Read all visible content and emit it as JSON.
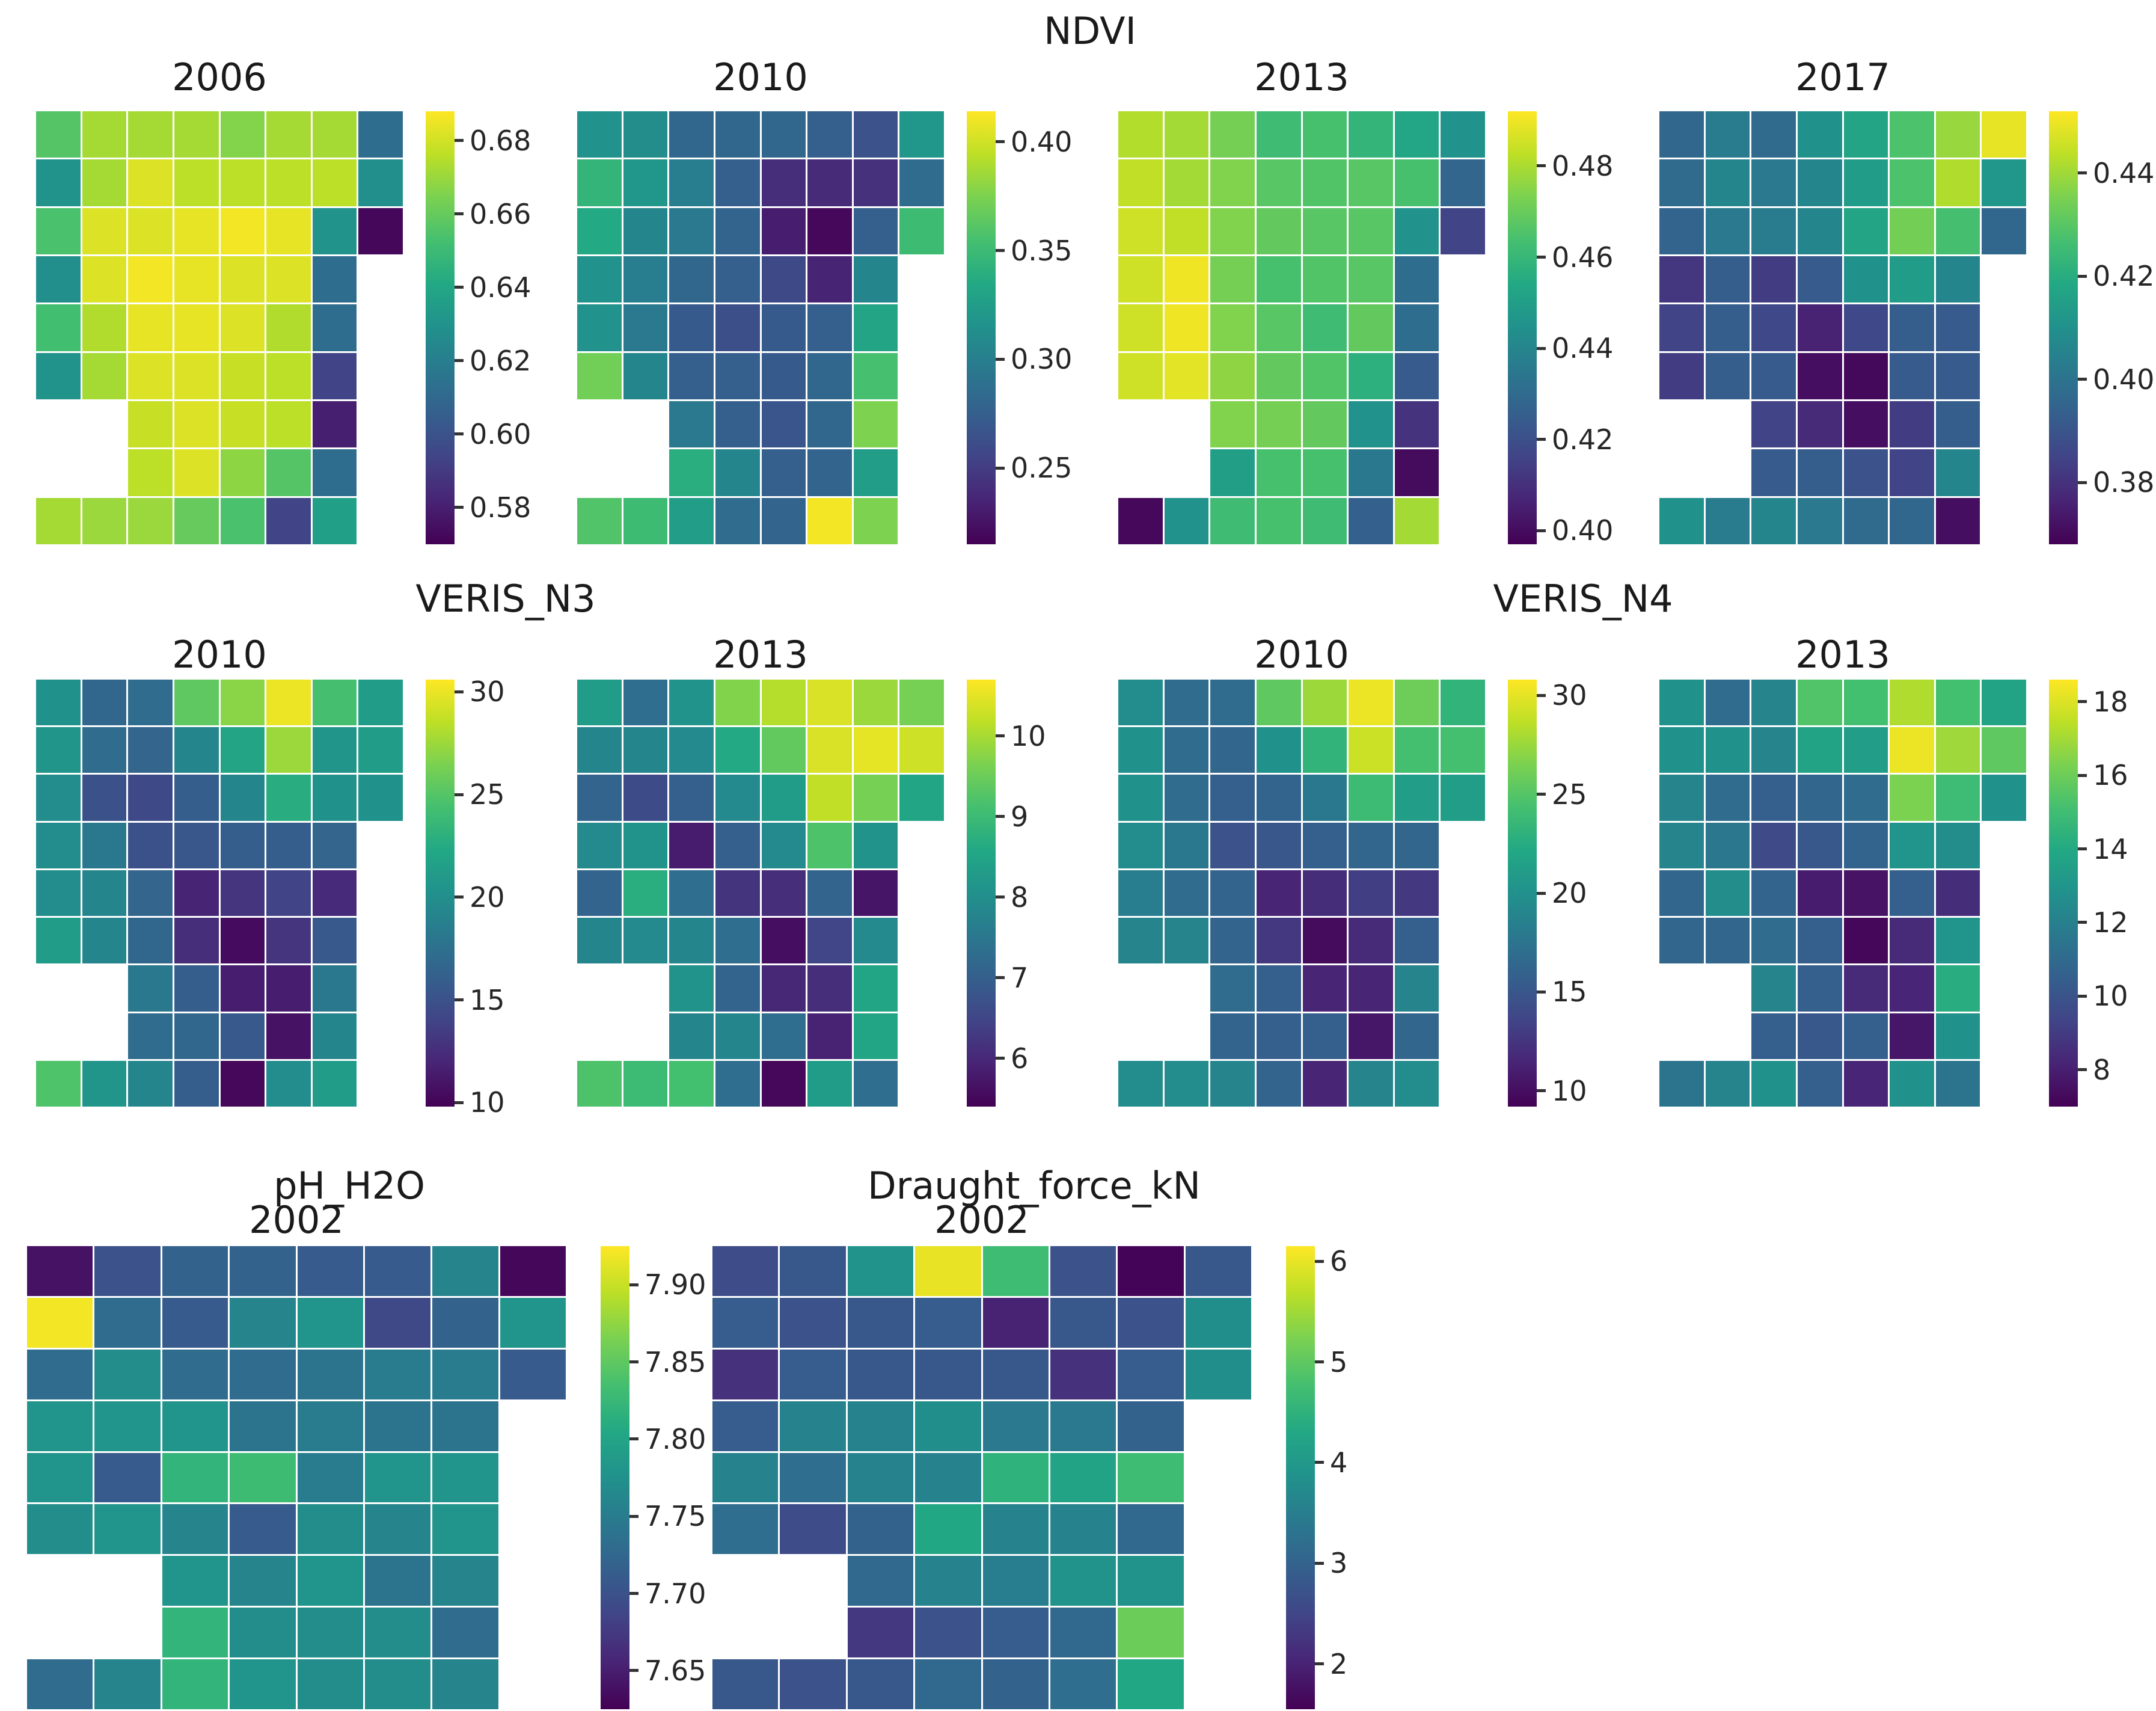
{
  "figure": {
    "background": "#ffffff",
    "text_color": "#1a1a1a"
  },
  "groups": {
    "ndvi": {
      "label": "NDVI"
    },
    "veris_n3": {
      "label": "VERIS_N3"
    },
    "veris_n4": {
      "label": "VERIS_N4"
    },
    "ph": {
      "label": "pH_H2O"
    },
    "draught": {
      "label": "Draught_force_kN"
    }
  },
  "colormap": {
    "name": "viridis",
    "stops": [
      "#440154",
      "#482475",
      "#414487",
      "#355f8d",
      "#2a788e",
      "#21918c",
      "#22a884",
      "#44bf70",
      "#7ad151",
      "#bddf26",
      "#fde725"
    ]
  },
  "chart_data": [
    {
      "type": "heatmap",
      "group": "NDVI",
      "title": "2006",
      "vmin": 0.57,
      "vmax": 0.688,
      "tick_decimals": 2,
      "colorbar_ticks": [
        0.68,
        0.66,
        0.64,
        0.62,
        0.6,
        0.58
      ],
      "grid": [
        [
          0.656,
          0.672,
          0.672,
          0.672,
          0.666,
          0.672,
          0.672,
          0.612
        ],
        [
          0.63,
          0.672,
          0.682,
          0.676,
          0.676,
          0.676,
          0.676,
          0.628
        ],
        [
          0.654,
          0.682,
          0.682,
          0.684,
          0.686,
          0.684,
          0.63,
          0.572
        ],
        [
          0.628,
          0.682,
          0.686,
          0.684,
          0.682,
          0.682,
          0.612,
          null
        ],
        [
          0.652,
          0.674,
          0.684,
          0.684,
          0.682,
          0.674,
          0.612,
          null
        ],
        [
          0.63,
          0.672,
          0.682,
          0.682,
          0.678,
          0.676,
          0.594,
          null
        ],
        [
          null,
          null,
          0.678,
          0.682,
          0.678,
          0.676,
          0.58,
          null
        ],
        [
          null,
          null,
          0.676,
          0.682,
          0.668,
          0.656,
          0.612,
          null
        ],
        [
          0.672,
          0.67,
          0.67,
          0.66,
          0.654,
          0.594,
          0.636,
          null
        ]
      ]
    },
    {
      "type": "heatmap",
      "group": "NDVI",
      "title": "2010",
      "vmin": 0.215,
      "vmax": 0.414,
      "tick_decimals": 2,
      "colorbar_ticks": [
        0.4,
        0.35,
        0.3,
        0.25
      ],
      "grid": [
        [
          0.315,
          0.311,
          0.281,
          0.281,
          0.281,
          0.275,
          0.265,
          0.319
        ],
        [
          0.345,
          0.319,
          0.299,
          0.275,
          0.241,
          0.239,
          0.243,
          0.285
        ],
        [
          0.335,
          0.305,
          0.295,
          0.279,
          0.231,
          0.219,
          0.275,
          0.351
        ],
        [
          0.315,
          0.299,
          0.281,
          0.275,
          0.259,
          0.235,
          0.305,
          null
        ],
        [
          0.315,
          0.295,
          0.271,
          0.263,
          0.271,
          0.275,
          0.331,
          null
        ],
        [
          0.371,
          0.305,
          0.275,
          0.275,
          0.271,
          0.281,
          0.355,
          null
        ],
        [
          null,
          null,
          0.295,
          0.275,
          0.267,
          0.281,
          0.375,
          null
        ],
        [
          null,
          null,
          0.339,
          0.305,
          0.275,
          0.279,
          0.325,
          null
        ],
        [
          0.359,
          0.351,
          0.325,
          0.285,
          0.279,
          0.411,
          0.375,
          null
        ]
      ]
    },
    {
      "type": "heatmap",
      "group": "NDVI",
      "title": "2013",
      "vmin": 0.397,
      "vmax": 0.492,
      "tick_decimals": 2,
      "colorbar_ticks": [
        0.48,
        0.46,
        0.44,
        0.42,
        0.4
      ],
      "grid": [
        [
          0.481,
          0.479,
          0.472,
          0.462,
          0.464,
          0.459,
          0.453,
          0.445
        ],
        [
          0.483,
          0.479,
          0.474,
          0.467,
          0.466,
          0.467,
          0.464,
          0.428
        ],
        [
          0.485,
          0.483,
          0.474,
          0.469,
          0.467,
          0.467,
          0.445,
          0.416
        ],
        [
          0.485,
          0.49,
          0.472,
          0.464,
          0.466,
          0.467,
          0.431,
          null
        ],
        [
          0.485,
          0.49,
          0.474,
          0.467,
          0.462,
          0.469,
          0.431,
          null
        ],
        [
          0.485,
          0.488,
          0.476,
          0.469,
          0.466,
          0.457,
          0.424,
          null
        ],
        [
          null,
          null,
          0.474,
          0.472,
          0.469,
          0.445,
          0.411,
          null
        ],
        [
          null,
          null,
          0.45,
          0.464,
          0.464,
          0.435,
          0.4,
          null
        ],
        [
          0.399,
          0.445,
          0.462,
          0.464,
          0.462,
          0.426,
          0.479,
          null
        ]
      ]
    },
    {
      "type": "heatmap",
      "group": "NDVI",
      "title": "2017",
      "vmin": 0.368,
      "vmax": 0.452,
      "tick_decimals": 2,
      "colorbar_ticks": [
        0.44,
        0.42,
        0.4,
        0.38
      ],
      "grid": [
        [
          0.396,
          0.403,
          0.397,
          0.41,
          0.417,
          0.428,
          0.439,
          0.449
        ],
        [
          0.397,
          0.406,
          0.402,
          0.406,
          0.414,
          0.428,
          0.442,
          0.412
        ],
        [
          0.395,
          0.402,
          0.403,
          0.406,
          0.417,
          0.434,
          0.427,
          0.396
        ],
        [
          0.381,
          0.393,
          0.383,
          0.392,
          0.41,
          0.414,
          0.406,
          null
        ],
        [
          0.385,
          0.393,
          0.386,
          0.376,
          0.386,
          0.393,
          0.392,
          null
        ],
        [
          0.383,
          0.393,
          0.392,
          0.371,
          0.37,
          0.392,
          0.392,
          null
        ],
        [
          null,
          null,
          0.385,
          0.378,
          0.371,
          0.383,
          0.393,
          null
        ],
        [
          null,
          null,
          0.392,
          0.393,
          0.389,
          0.385,
          0.406,
          null
        ],
        [
          0.41,
          0.403,
          0.406,
          0.402,
          0.397,
          0.396,
          0.371,
          null
        ]
      ]
    },
    {
      "type": "heatmap",
      "group": "VERIS_N3",
      "title": "2010",
      "vmin": 9.8,
      "vmax": 30.6,
      "tick_decimals": 0,
      "colorbar_ticks": [
        30,
        25,
        20,
        15,
        10
      ],
      "grid": [
        [
          20.2,
          16.7,
          17.1,
          25.4,
          26.9,
          30.0,
          24.4,
          21.2
        ],
        [
          20.6,
          17.1,
          16.5,
          19.2,
          21.9,
          27.5,
          20.6,
          21.2
        ],
        [
          19.8,
          15.0,
          14.4,
          16.0,
          19.2,
          22.7,
          20.2,
          20.2
        ],
        [
          19.8,
          18.1,
          15.0,
          15.4,
          16.0,
          16.0,
          16.5,
          null
        ],
        [
          19.8,
          19.2,
          16.5,
          11.9,
          12.9,
          14.0,
          12.3,
          null
        ],
        [
          21.2,
          19.2,
          16.7,
          12.5,
          10.4,
          12.9,
          15.6,
          null
        ],
        [
          null,
          null,
          18.1,
          16.0,
          11.5,
          11.5,
          18.1,
          null
        ],
        [
          null,
          null,
          17.1,
          16.7,
          15.6,
          10.8,
          19.2,
          null
        ],
        [
          24.8,
          20.6,
          19.2,
          16.0,
          10.2,
          19.8,
          21.2,
          null
        ]
      ]
    },
    {
      "type": "heatmap",
      "group": "VERIS_N3",
      "title": "2013",
      "vmin": 5.4,
      "vmax": 10.7,
      "tick_decimals": 0,
      "colorbar_ticks": [
        10,
        9,
        8,
        7,
        6
      ],
      "grid": [
        [
          8.3,
          7.3,
          8.1,
          9.7,
          10.1,
          10.4,
          9.9,
          9.6
        ],
        [
          7.8,
          7.8,
          7.9,
          8.6,
          9.4,
          10.4,
          10.5,
          10.3
        ],
        [
          7.1,
          6.6,
          7.0,
          7.9,
          8.3,
          10.2,
          9.6,
          8.5
        ],
        [
          7.9,
          8.1,
          5.8,
          7.0,
          7.9,
          9.2,
          8.1,
          null
        ],
        [
          7.1,
          8.7,
          7.3,
          6.2,
          6.1,
          7.1,
          5.7,
          null
        ],
        [
          7.8,
          7.9,
          7.8,
          7.3,
          5.6,
          6.5,
          7.9,
          null
        ],
        [
          null,
          null,
          8.1,
          7.1,
          6.0,
          6.1,
          8.5,
          null
        ],
        [
          null,
          null,
          7.8,
          7.8,
          7.3,
          5.9,
          8.5,
          null
        ],
        [
          9.2,
          9.0,
          9.1,
          7.3,
          5.5,
          8.3,
          7.3,
          null
        ]
      ]
    },
    {
      "type": "heatmap",
      "group": "VERIS_N4",
      "title": "2010",
      "vmin": 9.2,
      "vmax": 30.8,
      "tick_decimals": 0,
      "colorbar_ticks": [
        30,
        25,
        20,
        15,
        10
      ],
      "grid": [
        [
          19.6,
          16.8,
          16.8,
          25.4,
          27.6,
          30.2,
          26.0,
          23.2
        ],
        [
          20.0,
          16.8,
          16.3,
          20.0,
          23.2,
          29.1,
          24.3,
          24.3
        ],
        [
          20.0,
          16.8,
          15.7,
          16.1,
          17.8,
          23.9,
          21.1,
          21.1
        ],
        [
          19.6,
          17.8,
          14.6,
          15.0,
          15.7,
          16.3,
          16.3,
          null
        ],
        [
          18.3,
          16.8,
          16.1,
          11.4,
          12.0,
          13.1,
          12.7,
          null
        ],
        [
          18.9,
          18.9,
          16.1,
          12.7,
          9.8,
          11.8,
          15.7,
          null
        ],
        [
          null,
          null,
          16.8,
          15.7,
          11.4,
          11.4,
          18.9,
          null
        ],
        [
          null,
          null,
          16.1,
          15.7,
          15.7,
          10.5,
          16.3,
          null
        ],
        [
          19.6,
          19.6,
          18.9,
          16.1,
          11.4,
          18.9,
          19.6,
          null
        ]
      ]
    },
    {
      "type": "heatmap",
      "group": "VERIS_N4",
      "title": "2013",
      "vmin": 7.0,
      "vmax": 18.6,
      "tick_decimals": 0,
      "colorbar_ticks": [
        18,
        16,
        14,
        12,
        10,
        8
      ],
      "grid": [
        [
          12.8,
          11.1,
          12.2,
          15.4,
          15.1,
          17.2,
          15.1,
          13.7
        ],
        [
          12.8,
          12.8,
          12.2,
          13.7,
          13.4,
          18.3,
          16.9,
          15.7
        ],
        [
          12.2,
          11.1,
          10.5,
          10.8,
          11.1,
          16.3,
          14.9,
          12.8
        ],
        [
          12.2,
          11.6,
          9.6,
          10.2,
          10.7,
          13.0,
          12.6,
          null
        ],
        [
          10.8,
          12.6,
          10.7,
          7.9,
          7.6,
          10.5,
          8.5,
          null
        ],
        [
          10.8,
          10.8,
          11.1,
          10.5,
          7.2,
          8.4,
          13.0,
          null
        ],
        [
          null,
          null,
          12.2,
          10.5,
          8.4,
          8.2,
          14.2,
          null
        ],
        [
          null,
          null,
          10.5,
          10.2,
          10.5,
          7.7,
          12.8,
          null
        ],
        [
          11.4,
          12.2,
          12.8,
          10.5,
          8.2,
          12.8,
          11.4,
          null
        ]
      ]
    },
    {
      "type": "heatmap",
      "group": "pH_H2O",
      "title": "2002",
      "vmin": 7.625,
      "vmax": 7.925,
      "tick_decimals": 2,
      "colorbar_ticks": [
        7.9,
        7.85,
        7.8,
        7.75,
        7.7,
        7.65
      ],
      "grid": [
        [
          7.64,
          7.7,
          7.72,
          7.72,
          7.71,
          7.71,
          7.76,
          7.63
        ],
        [
          7.92,
          7.73,
          7.71,
          7.76,
          7.78,
          7.69,
          7.72,
          7.78
        ],
        [
          7.73,
          7.77,
          7.73,
          7.73,
          7.74,
          7.75,
          7.75,
          7.71
        ],
        [
          7.78,
          7.78,
          7.78,
          7.74,
          7.75,
          7.74,
          7.74,
          null
        ],
        [
          7.78,
          7.71,
          7.82,
          7.83,
          7.75,
          7.78,
          7.78,
          null
        ],
        [
          7.77,
          7.78,
          7.76,
          7.71,
          7.77,
          7.76,
          7.78,
          null
        ],
        [
          null,
          null,
          7.78,
          7.76,
          7.78,
          7.74,
          7.76,
          null
        ],
        [
          null,
          null,
          7.82,
          7.77,
          7.77,
          7.77,
          7.73,
          null
        ],
        [
          7.73,
          7.76,
          7.82,
          7.78,
          7.77,
          7.77,
          7.76,
          null
        ]
      ]
    },
    {
      "type": "heatmap",
      "group": "Draught_force_kN",
      "title": "2002",
      "vmin": 1.55,
      "vmax": 6.15,
      "tick_decimals": 0,
      "colorbar_ticks": [
        6,
        5,
        4,
        3,
        2
      ],
      "grid": [
        [
          2.6,
          2.8,
          3.9,
          6.0,
          4.7,
          2.7,
          1.6,
          2.8
        ],
        [
          2.9,
          2.7,
          2.8,
          2.9,
          2.0,
          2.8,
          2.7,
          3.8
        ],
        [
          2.2,
          2.9,
          2.8,
          2.8,
          2.8,
          2.2,
          2.9,
          3.8
        ],
        [
          2.9,
          3.6,
          3.6,
          3.8,
          3.4,
          3.4,
          3.0,
          null
        ],
        [
          3.6,
          3.2,
          3.6,
          3.6,
          4.5,
          4.2,
          4.7,
          null
        ],
        [
          3.2,
          2.6,
          3.0,
          4.3,
          3.6,
          3.6,
          3.1,
          null
        ],
        [
          null,
          null,
          3.1,
          3.6,
          3.5,
          3.9,
          3.9,
          null
        ],
        [
          null,
          null,
          2.3,
          2.7,
          2.9,
          3.1,
          5.1,
          null
        ],
        [
          2.8,
          2.7,
          2.8,
          3.1,
          3.0,
          3.2,
          4.3,
          null
        ]
      ]
    }
  ]
}
